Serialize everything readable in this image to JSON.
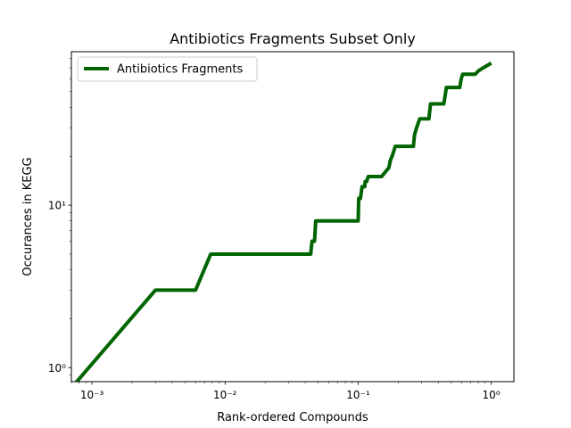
{
  "chart_data": {
    "type": "line",
    "title": "Antibiotics Fragments Subset Only",
    "xlabel": "Rank-ordered Compounds",
    "ylabel": "Occurances in KEGG",
    "xscale": "log",
    "yscale": "log",
    "xlim": [
      0.0007,
      1.48
    ],
    "ylim": [
      0.82,
      88
    ],
    "x_ticks": [
      {
        "value": 0.001,
        "label": "10⁻³"
      },
      {
        "value": 0.01,
        "label": "10⁻²"
      },
      {
        "value": 0.1,
        "label": "10⁻¹"
      },
      {
        "value": 1,
        "label": "10⁰"
      }
    ],
    "y_ticks": [
      {
        "value": 1,
        "label": "10⁰"
      },
      {
        "value": 10,
        "label": "10¹"
      }
    ],
    "legend": {
      "position": "top-left"
    },
    "grid": false,
    "series": [
      {
        "name": "Antibiotics Fragments",
        "color": "#006400",
        "x": [
          0.0007,
          0.003,
          0.006,
          0.0078,
          0.044,
          0.045,
          0.047,
          0.048,
          0.1,
          0.101,
          0.104,
          0.107,
          0.112,
          0.113,
          0.116,
          0.119,
          0.15,
          0.17,
          0.175,
          0.18,
          0.19,
          0.26,
          0.265,
          0.275,
          0.29,
          0.34,
          0.345,
          0.35,
          0.44,
          0.45,
          0.46,
          0.58,
          0.595,
          0.61,
          0.76,
          0.8,
          0.87,
          0.95,
          1.0
        ],
        "y": [
          0.75,
          3,
          3,
          5,
          5,
          6,
          6,
          8,
          8,
          11,
          11,
          13,
          13,
          14,
          14,
          15,
          15,
          17,
          19,
          20,
          23,
          23,
          27,
          30,
          34,
          34,
          38,
          42,
          42,
          47,
          53,
          53,
          60,
          64,
          64,
          67,
          70,
          73,
          75
        ]
      }
    ]
  }
}
